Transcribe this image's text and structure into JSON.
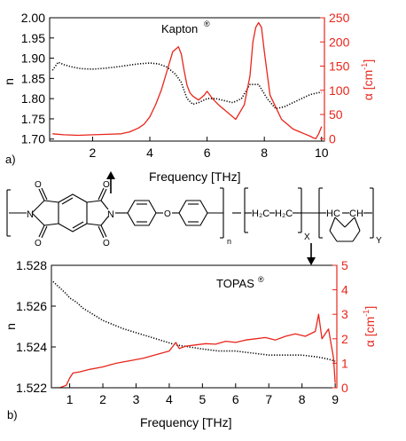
{
  "panel_a": {
    "label": "a)",
    "title": "Kapton",
    "title_mark": "®",
    "xlabel": "Frequency [THz]",
    "ylabel_left": "n",
    "ylabel_right": "α [cm",
    "ylabel_right_exp": "-1",
    "ylabel_right_close": "]"
  },
  "panel_b": {
    "label": "b)",
    "title": "TOPAS",
    "title_mark": "®",
    "xlabel": "Frequency [THz]",
    "ylabel_left": "n",
    "ylabel_right": "α [cm",
    "ylabel_right_exp": "-1",
    "ylabel_right_close": "]"
  },
  "structure": {
    "ch2_left": "H₂C",
    "ch2_right": "H₂C",
    "ch_left": "HC",
    "ch_right": "CH",
    "sub_n": "n",
    "sub_x": "X",
    "sub_y": "Y",
    "atom_n": "N",
    "atom_o": "O"
  },
  "colors": {
    "refractive_index": "#000000",
    "absorption": "#e8251b",
    "axis_right": "#e8251b"
  },
  "chart_data": [
    {
      "type": "line",
      "title": "Kapton®",
      "xlabel": "Frequency [THz]",
      "ylabel": "n",
      "y2label": "α [cm^-1]",
      "xlim": [
        0.5,
        10.1
      ],
      "ylim": [
        1.695,
        2.0
      ],
      "y2lim": [
        -5,
        250
      ],
      "xticks": [
        2,
        4,
        6,
        8,
        10
      ],
      "yticks": [
        "1.70",
        "1.75",
        "1.80",
        "1.85",
        "1.90",
        "1.95",
        "2.00"
      ],
      "y2ticks": [
        0,
        50,
        100,
        150,
        200,
        250
      ],
      "series": [
        {
          "axis": "left",
          "style": "dotted",
          "color": "#000000",
          "x": [
            0.6,
            0.8,
            1.0,
            1.3,
            1.6,
            2.0,
            2.4,
            2.8,
            3.2,
            3.6,
            4.0,
            4.3,
            4.6,
            4.9,
            5.1,
            5.3,
            5.5,
            5.7,
            6.0,
            6.3,
            6.6,
            6.9,
            7.2,
            7.5,
            7.8,
            8.1,
            8.4,
            8.7,
            9.0,
            9.3,
            9.6,
            9.9,
            10.0
          ],
          "y": [
            1.87,
            1.89,
            1.884,
            1.878,
            1.874,
            1.873,
            1.875,
            1.878,
            1.882,
            1.886,
            1.888,
            1.886,
            1.878,
            1.86,
            1.84,
            1.8,
            1.786,
            1.79,
            1.8,
            1.8,
            1.795,
            1.79,
            1.8,
            1.835,
            1.835,
            1.8,
            1.775,
            1.78,
            1.79,
            1.8,
            1.81,
            1.815,
            1.815
          ]
        },
        {
          "axis": "right",
          "style": "solid",
          "color": "#e8251b",
          "x": [
            0.6,
            1.0,
            1.5,
            2.0,
            2.5,
            3.0,
            3.3,
            3.6,
            3.8,
            4.0,
            4.2,
            4.4,
            4.6,
            4.8,
            5.0,
            5.1,
            5.2,
            5.3,
            5.4,
            5.5,
            5.7,
            5.9,
            6.0,
            6.2,
            6.4,
            6.7,
            7.0,
            7.3,
            7.5,
            7.6,
            7.7,
            7.8,
            7.9,
            8.0,
            8.2,
            8.4,
            8.6,
            8.8,
            9.0,
            9.2,
            9.4,
            9.6,
            9.7,
            9.8,
            9.9,
            10.0
          ],
          "y": [
            10,
            8,
            7,
            8,
            9,
            10,
            14,
            22,
            30,
            45,
            70,
            100,
            140,
            180,
            190,
            175,
            140,
            110,
            95,
            88,
            80,
            90,
            98,
            82,
            70,
            55,
            40,
            70,
            130,
            200,
            230,
            240,
            230,
            180,
            90,
            65,
            40,
            30,
            20,
            15,
            10,
            5,
            2,
            0,
            10,
            25
          ]
        }
      ]
    },
    {
      "type": "line",
      "title": "TOPAS®",
      "xlabel": "Frequency [THz]",
      "ylabel": "n",
      "y2label": "α [cm^-1]",
      "xlim": [
        0.45,
        9.05
      ],
      "ylim": [
        1.522,
        1.528
      ],
      "y2lim": [
        0,
        5
      ],
      "xticks": [
        1,
        2,
        3,
        4,
        5,
        6,
        7,
        8,
        9
      ],
      "yticks": [
        "1.522",
        "1.524",
        "1.526",
        "1.528"
      ],
      "y2ticks": [
        0,
        1,
        2,
        3,
        4,
        5
      ],
      "series": [
        {
          "axis": "left",
          "style": "dotted",
          "color": "#000000",
          "x": [
            0.5,
            0.7,
            0.9,
            1.0,
            1.2,
            1.4,
            1.6,
            1.8,
            2.0,
            2.3,
            2.6,
            3.0,
            3.4,
            3.8,
            4.2,
            4.6,
            5.0,
            5.5,
            6.0,
            6.5,
            7.0,
            7.5,
            8.0,
            8.5,
            8.8,
            9.0
          ],
          "y": [
            1.5272,
            1.5269,
            1.5266,
            1.5264,
            1.5262,
            1.5259,
            1.5257,
            1.5255,
            1.5253,
            1.5251,
            1.5249,
            1.5247,
            1.5245,
            1.5243,
            1.5241,
            1.524,
            1.5239,
            1.5238,
            1.5238,
            1.5237,
            1.5236,
            1.5236,
            1.5236,
            1.5235,
            1.5234,
            1.5233
          ]
        },
        {
          "axis": "right",
          "style": "solid",
          "color": "#e8251b",
          "x": [
            0.5,
            0.7,
            0.9,
            1.0,
            1.1,
            1.3,
            1.6,
            2.0,
            2.4,
            2.8,
            3.2,
            3.6,
            4.0,
            4.2,
            4.3,
            4.5,
            4.8,
            5.1,
            5.4,
            5.7,
            6.0,
            6.3,
            6.6,
            6.9,
            7.2,
            7.5,
            7.8,
            8.1,
            8.4,
            8.5,
            8.6,
            8.8,
            8.95,
            9.0
          ],
          "y": [
            0,
            0,
            0.1,
            0.4,
            0.6,
            0.65,
            0.75,
            0.85,
            1.0,
            1.1,
            1.2,
            1.35,
            1.5,
            1.85,
            1.6,
            1.7,
            1.75,
            1.8,
            1.78,
            1.9,
            1.85,
            1.95,
            2.0,
            2.05,
            1.95,
            2.1,
            2.2,
            2.1,
            2.3,
            3.0,
            2.0,
            2.4,
            1.2,
            0.2
          ]
        }
      ]
    }
  ]
}
